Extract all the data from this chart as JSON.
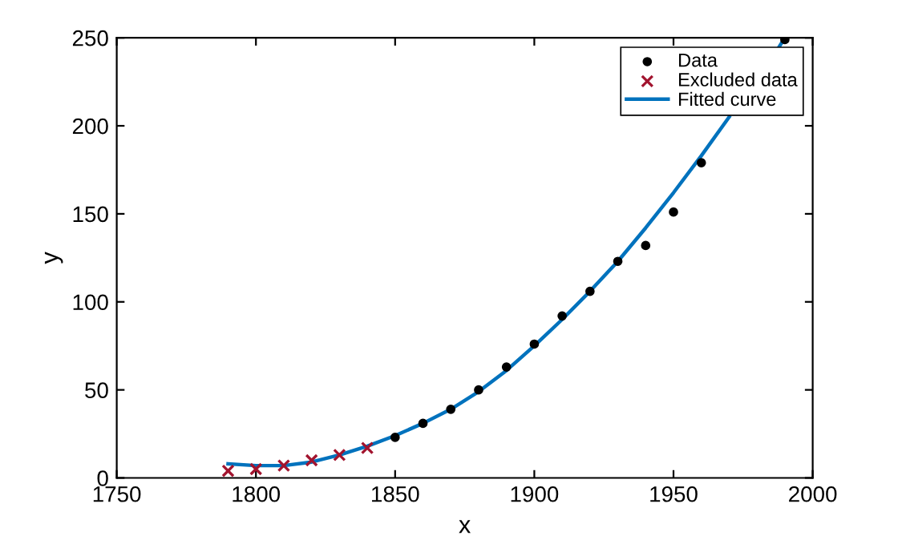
{
  "chart_data": {
    "type": "scatter",
    "xlabel": "x",
    "ylabel": "y",
    "xlim": [
      1750,
      2000
    ],
    "xticks": [
      1750,
      1800,
      1850,
      1900,
      1950,
      2000
    ],
    "ylim": [
      0,
      250
    ],
    "yticks": [
      0,
      50,
      100,
      150,
      200,
      250
    ],
    "grid": false,
    "legend": "top right",
    "series": [
      {
        "name": "Data",
        "marker": "circle",
        "color": "#000000",
        "x": [
          1850,
          1860,
          1870,
          1880,
          1890,
          1900,
          1910,
          1920,
          1930,
          1940,
          1950,
          1960,
          1970,
          1980,
          1990
        ],
        "values": [
          23,
          31,
          39,
          50,
          63,
          76,
          92,
          106,
          123,
          132,
          151,
          179,
          null,
          null,
          249
        ]
      },
      {
        "name": "Excluded data",
        "marker": "cross",
        "color": "#a2142f",
        "x": [
          1790,
          1800,
          1810,
          1820,
          1830,
          1840
        ],
        "values": [
          4,
          5,
          7,
          10,
          13,
          17
        ]
      },
      {
        "name": "Fitted curve",
        "type": "line",
        "marker": "none",
        "color": "#0072bd",
        "x": [
          1790,
          1800,
          1810,
          1820,
          1830,
          1840,
          1850,
          1860,
          1870,
          1880,
          1890,
          1900,
          1910,
          1920,
          1930,
          1940,
          1950,
          1960,
          1970,
          1980,
          1988,
          1990
        ],
        "values": [
          8,
          7,
          7,
          9,
          13,
          18,
          24,
          31,
          39,
          49,
          61,
          75,
          90,
          106,
          123,
          142,
          162,
          183,
          205,
          null,
          245,
          250
        ]
      }
    ]
  }
}
